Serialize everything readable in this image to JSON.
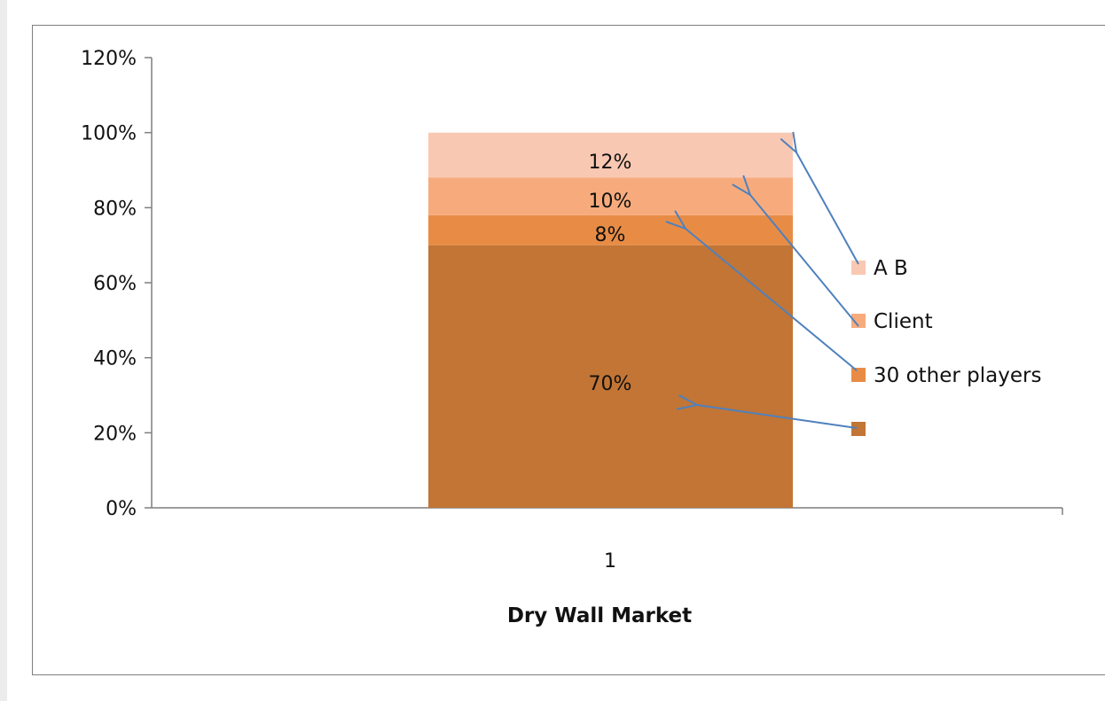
{
  "chart_data": {
    "type": "bar",
    "stacked": true,
    "categories": [
      "1"
    ],
    "title": "",
    "xlabel": "Dry Wall Market",
    "ylabel": "",
    "ylim": [
      0,
      1.2
    ],
    "y_ticks": [
      "0%",
      "20%",
      "40%",
      "60%",
      "80%",
      "100%",
      "120%"
    ],
    "y_tick_values": [
      0,
      0.2,
      0.4,
      0.6,
      0.8,
      1.0,
      1.2
    ],
    "grid": false,
    "legend_position": "right",
    "series": [
      {
        "name": "",
        "values": [
          0.7
        ],
        "label": "70%",
        "color": "#c27535"
      },
      {
        "name": "30 other players",
        "values": [
          0.08
        ],
        "label": "8%",
        "color": "#e88c45"
      },
      {
        "name": "Client",
        "values": [
          0.1
        ],
        "label": "10%",
        "color": "#f7ab7c"
      },
      {
        "name": "A B",
        "values": [
          0.12
        ],
        "label": "12%",
        "color": "#f9c8b3"
      }
    ],
    "annotations": {
      "arrow_color": "#4f81bd"
    }
  }
}
